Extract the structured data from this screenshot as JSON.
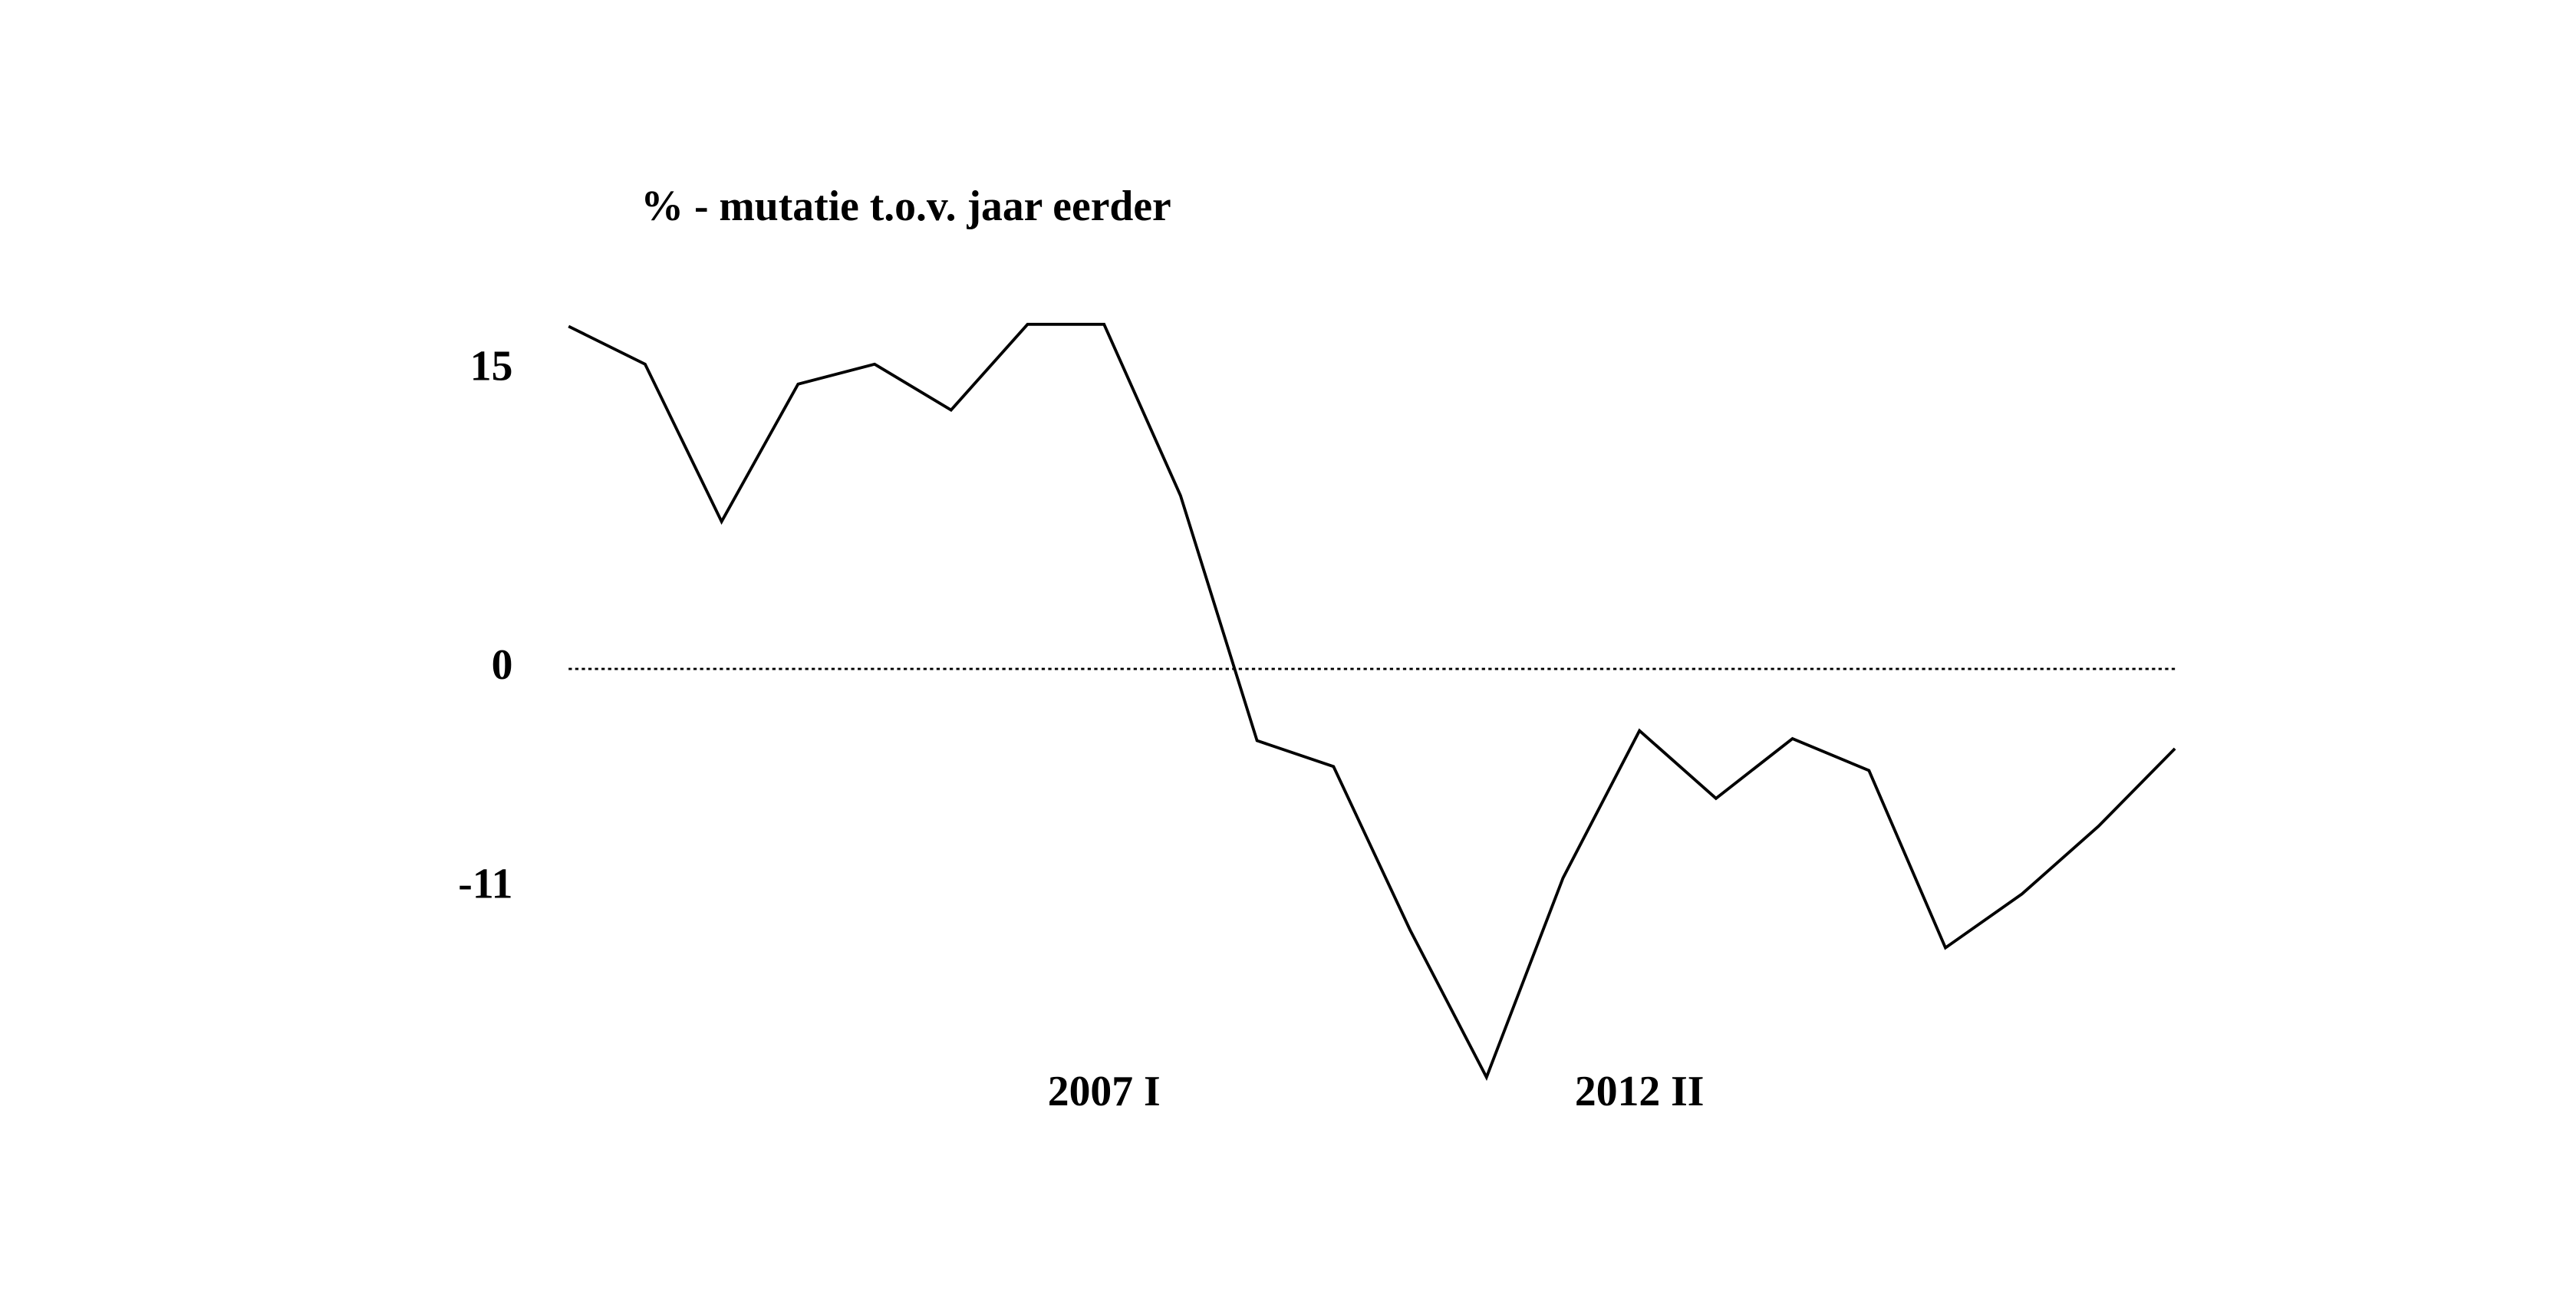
{
  "chart_data": {
    "type": "line",
    "ylabel": "% - mutatie t.o.v. jaar eerder",
    "categories": [
      null,
      null,
      null,
      null,
      null,
      null,
      null,
      "2007 I",
      null,
      null,
      null,
      null,
      null,
      null,
      "2012 II",
      null,
      null,
      null,
      null,
      null,
      null,
      null
    ],
    "values": [
      17.2,
      15.3,
      7.4,
      14.3,
      15.3,
      13.0,
      17.3,
      17.3,
      8.7,
      -3.6,
      -4.9,
      -13.1,
      -20.5,
      -10.5,
      -3.1,
      -6.5,
      -3.5,
      -5.1,
      -14.0,
      -11.3,
      -7.9,
      -4.0
    ],
    "color": "#000000",
    "ylim": [
      -21,
      18
    ],
    "yticks": [
      15,
      0,
      -11
    ],
    "zero_line": true
  }
}
